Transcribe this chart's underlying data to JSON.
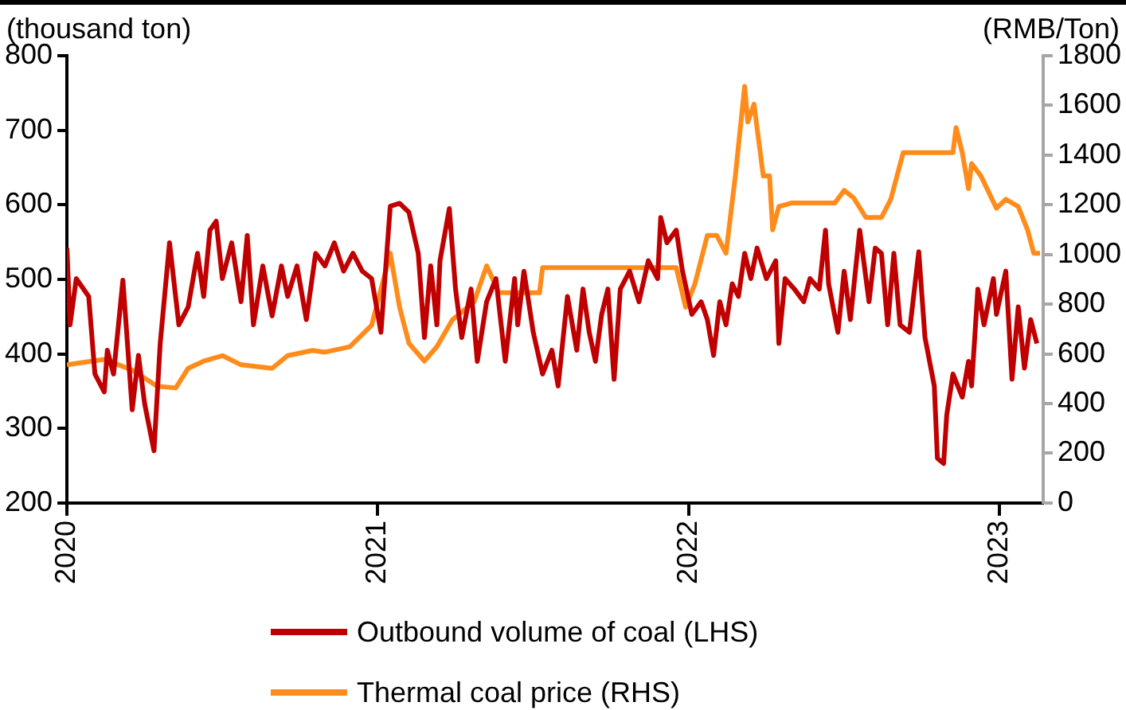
{
  "chart_data": {
    "type": "line",
    "ylabel": "(thousand ton)",
    "y2label": "(RMB/Ton)",
    "xlim": [
      2020,
      2023.14
    ],
    "xticks": [
      2020,
      2021,
      2022,
      2023
    ],
    "ylim": [
      200,
      800
    ],
    "yticks": [
      200,
      300,
      400,
      500,
      600,
      700,
      800
    ],
    "y2lim": [
      0,
      1800
    ],
    "y2ticks": [
      0,
      200,
      400,
      600,
      800,
      1000,
      1200,
      1400,
      1600,
      1800
    ],
    "grid": false,
    "legend": "bottom",
    "marker": "none",
    "line_style": "solid",
    "series": [
      {
        "name": "Outbound volume of coal (LHS)",
        "color": "#c00000",
        "x": [
          2020.0,
          2020.01,
          2020.03,
          2020.07,
          2020.09,
          2020.12,
          2020.13,
          2020.15,
          2020.18,
          2020.21,
          2020.23,
          2020.25,
          2020.28,
          2020.3,
          2020.33,
          2020.36,
          2020.39,
          2020.42,
          2020.44,
          2020.46,
          2020.48,
          2020.5,
          2020.53,
          2020.56,
          2020.58,
          2020.6,
          2020.63,
          2020.66,
          2020.69,
          2020.71,
          2020.74,
          2020.77,
          2020.8,
          2020.83,
          2020.86,
          2020.89,
          2020.92,
          2020.95,
          2020.98,
          2021.01,
          2021.04,
          2021.07,
          2021.1,
          2021.13,
          2021.15,
          2021.17,
          2021.19,
          2021.2,
          2021.23,
          2021.25,
          2021.27,
          2021.3,
          2021.32,
          2021.35,
          2021.38,
          2021.41,
          2021.44,
          2021.45,
          2021.47,
          2021.5,
          2021.53,
          2021.56,
          2021.58,
          2021.61,
          2021.64,
          2021.66,
          2021.68,
          2021.7,
          2021.72,
          2021.74,
          2021.76,
          2021.78,
          2021.81,
          2021.84,
          2021.87,
          2021.9,
          2021.91,
          2021.93,
          2021.96,
          2021.98,
          2022.01,
          2022.04,
          2022.06,
          2022.08,
          2022.1,
          2022.12,
          2022.14,
          2022.16,
          2022.18,
          2022.2,
          2022.22,
          2022.25,
          2022.28,
          2022.29,
          2022.31,
          2022.34,
          2022.37,
          2022.39,
          2022.42,
          2022.44,
          2022.45,
          2022.48,
          2022.5,
          2022.52,
          2022.55,
          2022.58,
          2022.6,
          2022.62,
          2022.64,
          2022.66,
          2022.68,
          2022.71,
          2022.74,
          2022.76,
          2022.79,
          2022.8,
          2022.82,
          2022.83,
          2022.85,
          2022.88,
          2022.9,
          2022.91,
          2022.93,
          2022.95,
          2022.98,
          2022.99,
          2023.02,
          2023.04,
          2023.06,
          2023.08,
          2023.1,
          2023.12
        ],
        "values": [
          542,
          439,
          501,
          477,
          373,
          349,
          405,
          373,
          499,
          325,
          398,
          333,
          270,
          414,
          549,
          439,
          463,
          535,
          477,
          566,
          578,
          501,
          549,
          470,
          559,
          439,
          518,
          451,
          518,
          477,
          518,
          446,
          535,
          518,
          549,
          511,
          535,
          511,
          501,
          429,
          598,
          602,
          590,
          535,
          422,
          518,
          439,
          525,
          595,
          487,
          422,
          487,
          390,
          470,
          501,
          390,
          501,
          439,
          511,
          429,
          373,
          405,
          357,
          477,
          405,
          487,
          429,
          390,
          453,
          487,
          366,
          487,
          511,
          470,
          525,
          501,
          583,
          549,
          566,
          511,
          453,
          470,
          446,
          398,
          470,
          439,
          494,
          477,
          535,
          501,
          542,
          501,
          525,
          414,
          501,
          487,
          470,
          501,
          487,
          566,
          494,
          429,
          511,
          446,
          566,
          470,
          542,
          535,
          439,
          535,
          439,
          429,
          537,
          422,
          357,
          260,
          253,
          318,
          373,
          342,
          390,
          357,
          487,
          439,
          501,
          453,
          511,
          366,
          463,
          381,
          446,
          414
        ]
      },
      {
        "name": "Thermal coal price (RHS)",
        "color": "#ff8c1a",
        "axis": "y2",
        "x": [
          2020.0,
          2020.12,
          2020.21,
          2020.29,
          2020.35,
          2020.39,
          2020.44,
          2020.5,
          2020.56,
          2020.66,
          2020.71,
          2020.79,
          2020.83,
          2020.91,
          2020.98,
          2021.01,
          2021.04,
          2021.07,
          2021.1,
          2021.15,
          2021.19,
          2021.24,
          2021.31,
          2021.35,
          2021.39,
          2021.52,
          2021.53,
          2021.96,
          2021.99,
          2022.02,
          2022.06,
          2022.09,
          2022.12,
          2022.15,
          2022.18,
          2022.19,
          2022.21,
          2022.24,
          2022.26,
          2022.27,
          2022.29,
          2022.33,
          2022.47,
          2022.5,
          2022.53,
          2022.57,
          2022.62,
          2022.65,
          2022.69,
          2022.85,
          2022.86,
          2022.88,
          2022.9,
          2022.91,
          2022.94,
          2022.99,
          2023.02,
          2023.06,
          2023.09,
          2023.11,
          2023.13
        ],
        "values": [
          556,
          578,
          535,
          470,
          463,
          542,
          571,
          593,
          556,
          542,
          593,
          614,
          607,
          629,
          715,
          860,
          1005,
          788,
          643,
          571,
          629,
          737,
          810,
          954,
          846,
          846,
          947,
          947,
          788,
          882,
          1077,
          1077,
          1005,
          1316,
          1677,
          1533,
          1605,
          1316,
          1316,
          1099,
          1193,
          1207,
          1207,
          1258,
          1229,
          1149,
          1149,
          1222,
          1410,
          1410,
          1511,
          1410,
          1265,
          1366,
          1316,
          1186,
          1222,
          1193,
          1099,
          1005,
          1005
        ]
      }
    ]
  }
}
